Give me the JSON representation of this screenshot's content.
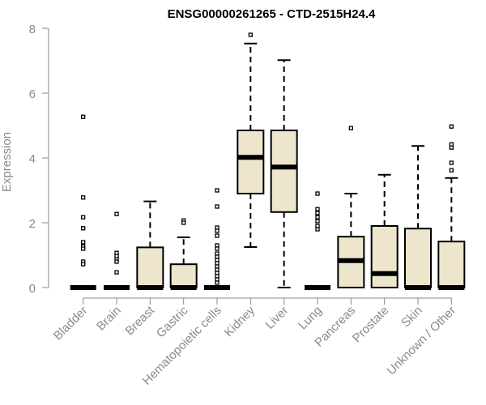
{
  "chart_data": {
    "type": "boxplot",
    "title": "ENSG00000261265 - CTD-2515H24.4",
    "xlabel": "",
    "ylabel": "Expression",
    "ylim": [
      0,
      8
    ],
    "yticks": [
      0,
      2,
      4,
      6,
      8
    ],
    "grid": false,
    "legend": "none",
    "colors": {
      "box_fill": "#ede6cc",
      "stroke": "#000000",
      "axis": "#8a8a8a",
      "text": "#8a8a8a"
    },
    "categories": [
      "Bladder",
      "Brain",
      "Breast",
      "Gastric",
      "Hematopoietic cells",
      "Kidney",
      "Liver",
      "Lung",
      "Pancreas",
      "Prostate",
      "Skin",
      "Unknown / Other"
    ],
    "boxes": [
      {
        "whisker_low": 0,
        "q1": 0,
        "median": 0,
        "q3": 0,
        "whisker_high": 0,
        "outliers": [
          5.27,
          2.78,
          2.17,
          1.83,
          1.4,
          1.27,
          1.2,
          0.8,
          0.72
        ]
      },
      {
        "whisker_low": 0,
        "q1": 0,
        "median": 0,
        "q3": 0,
        "whisker_high": 0,
        "outliers": [
          2.27,
          1.07,
          0.97,
          0.87,
          0.8,
          0.47
        ]
      },
      {
        "whisker_low": 0,
        "q1": 0,
        "median": 0,
        "q3": 1.24,
        "whisker_high": 2.66,
        "outliers": []
      },
      {
        "whisker_low": 0,
        "q1": 0,
        "median": 0,
        "q3": 0.72,
        "whisker_high": 1.55,
        "outliers": [
          2.07,
          2.0
        ]
      },
      {
        "whisker_low": 0,
        "q1": 0,
        "median": 0,
        "q3": 0,
        "whisker_high": 0,
        "outliers": [
          3.0,
          2.5,
          1.85,
          1.75,
          1.6,
          1.3,
          1.2,
          1.05,
          0.95,
          0.85,
          0.75,
          0.65,
          0.55,
          0.45,
          0.35,
          0.25,
          0.15
        ]
      },
      {
        "whisker_low": 1.25,
        "q1": 2.9,
        "median": 4.02,
        "q3": 4.85,
        "whisker_high": 7.53,
        "outliers": [
          7.8
        ]
      },
      {
        "whisker_low": 0,
        "q1": 2.33,
        "median": 3.72,
        "q3": 4.85,
        "whisker_high": 7.02,
        "outliers": []
      },
      {
        "whisker_low": 0,
        "q1": 0,
        "median": 0,
        "q3": 0,
        "whisker_high": 0,
        "outliers": [
          2.9,
          2.42,
          2.3,
          2.17,
          2.05,
          1.9,
          1.8
        ]
      },
      {
        "whisker_low": 0,
        "q1": 0,
        "median": 0.83,
        "q3": 1.57,
        "whisker_high": 2.9,
        "outliers": [
          4.92
        ]
      },
      {
        "whisker_low": 0,
        "q1": 0,
        "median": 0.43,
        "q3": 1.9,
        "whisker_high": 3.48,
        "outliers": []
      },
      {
        "whisker_low": 0,
        "q1": 0,
        "median": 0,
        "q3": 1.82,
        "whisker_high": 4.37,
        "outliers": []
      },
      {
        "whisker_low": 0,
        "q1": 0,
        "median": 0,
        "q3": 1.42,
        "whisker_high": 3.38,
        "outliers": [
          4.97,
          4.42,
          4.32,
          3.85,
          3.62
        ]
      }
    ]
  }
}
